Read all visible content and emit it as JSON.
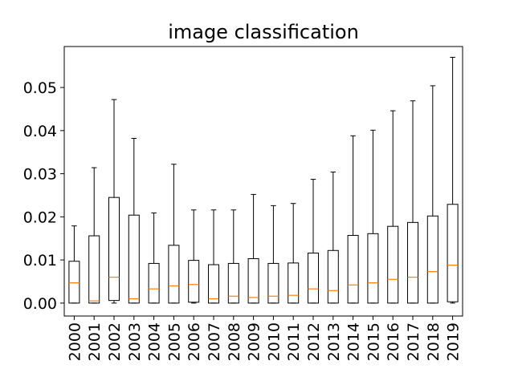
{
  "chart_data": {
    "type": "box",
    "title": "image classification",
    "xlabel": "",
    "ylabel": "",
    "ylim": [
      -0.003,
      0.0595
    ],
    "yticks": [
      0.0,
      0.01,
      0.02,
      0.03,
      0.04,
      0.05
    ],
    "ytick_labels": [
      "0.00",
      "0.01",
      "0.02",
      "0.03",
      "0.04",
      "0.05"
    ],
    "grid": false,
    "categories": [
      "2000",
      "2001",
      "2002",
      "2003",
      "2004",
      "2005",
      "2006",
      "2007",
      "2008",
      "2009",
      "2010",
      "2011",
      "2012",
      "2013",
      "2014",
      "2015",
      "2016",
      "2017",
      "2018",
      "2019"
    ],
    "boxes": [
      {
        "whislo": 0.0,
        "q1": 0.0,
        "med": 0.0047,
        "q3": 0.0097,
        "whishi": 0.0179
      },
      {
        "whislo": 0.0,
        "q1": 0.0,
        "med": 0.0005,
        "q3": 0.0156,
        "whishi": 0.0314
      },
      {
        "whislo": 0.0,
        "q1": 0.0006,
        "med": 0.006,
        "q3": 0.0245,
        "whishi": 0.0472
      },
      {
        "whislo": 0.0,
        "q1": 0.0,
        "med": 0.001,
        "q3": 0.0204,
        "whishi": 0.0382
      },
      {
        "whislo": 0.0,
        "q1": 0.0,
        "med": 0.0033,
        "q3": 0.0092,
        "whishi": 0.0209
      },
      {
        "whislo": 0.0,
        "q1": 0.0,
        "med": 0.004,
        "q3": 0.0134,
        "whishi": 0.0322
      },
      {
        "whislo": 0.0,
        "q1": 0.0002,
        "med": 0.0043,
        "q3": 0.0099,
        "whishi": 0.0216
      },
      {
        "whislo": 0.0,
        "q1": 0.0,
        "med": 0.001,
        "q3": 0.0089,
        "whishi": 0.0216
      },
      {
        "whislo": 0.0,
        "q1": 0.0,
        "med": 0.0016,
        "q3": 0.0092,
        "whishi": 0.0216
      },
      {
        "whislo": 0.0,
        "q1": 0.0,
        "med": 0.0013,
        "q3": 0.0103,
        "whishi": 0.0252
      },
      {
        "whislo": 0.0,
        "q1": 0.0,
        "med": 0.0016,
        "q3": 0.0092,
        "whishi": 0.0226
      },
      {
        "whislo": 0.0,
        "q1": 0.0,
        "med": 0.0018,
        "q3": 0.0093,
        "whishi": 0.0231
      },
      {
        "whislo": 0.0,
        "q1": 0.0,
        "med": 0.0033,
        "q3": 0.0116,
        "whishi": 0.0287
      },
      {
        "whislo": 0.0,
        "q1": 0.0,
        "med": 0.0029,
        "q3": 0.0122,
        "whishi": 0.0304
      },
      {
        "whislo": 0.0,
        "q1": 0.0,
        "med": 0.0042,
        "q3": 0.0157,
        "whishi": 0.0388
      },
      {
        "whislo": 0.0,
        "q1": 0.0,
        "med": 0.0047,
        "q3": 0.0161,
        "whishi": 0.0401
      },
      {
        "whislo": 0.0,
        "q1": 0.0,
        "med": 0.0055,
        "q3": 0.0178,
        "whishi": 0.0446
      },
      {
        "whislo": 0.0,
        "q1": 0.0,
        "med": 0.006,
        "q3": 0.0187,
        "whishi": 0.0469
      },
      {
        "whislo": 0.0,
        "q1": 0.0,
        "med": 0.0073,
        "q3": 0.0202,
        "whishi": 0.0504
      },
      {
        "whislo": 0.0,
        "q1": 0.0003,
        "med": 0.0088,
        "q3": 0.0229,
        "whishi": 0.057
      }
    ],
    "colors": {
      "box": "#000000",
      "median": "#ff7f0e",
      "whisker": "#000000"
    }
  }
}
